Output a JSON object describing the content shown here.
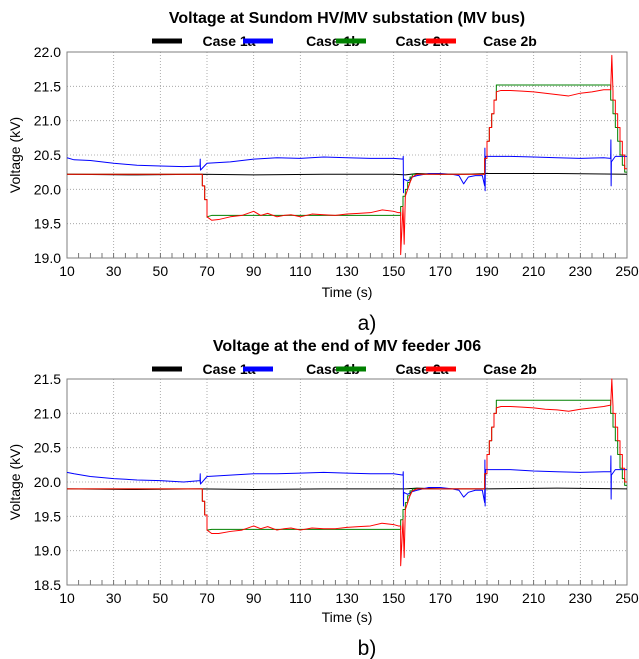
{
  "chart_data": [
    {
      "type": "line",
      "panel_label": "a)",
      "title": "Voltage at Sundom HV/MV substation (MV bus)",
      "xlabel": "Time (s)",
      "ylabel": "Voltage (kV)",
      "xlim": [
        10,
        250
      ],
      "ylim": [
        19.0,
        22.0
      ],
      "x_ticks": [
        10,
        30,
        50,
        70,
        90,
        110,
        130,
        150,
        170,
        190,
        210,
        230,
        250
      ],
      "x_tick_labels": [
        "10",
        "30",
        "50",
        "70",
        "90",
        "110",
        "130",
        "150",
        "170",
        "190",
        "210",
        "230",
        "250"
      ],
      "y_ticks": [
        19.0,
        19.5,
        20.0,
        20.5,
        21.0,
        21.5,
        22.0
      ],
      "y_tick_labels": [
        "19.0",
        "19.5",
        "20.0",
        "20.5",
        "21.0",
        "21.5",
        "22.0"
      ],
      "grid": true,
      "legend_position": "top",
      "series": [
        {
          "name": "Case 1a",
          "color": "#000000",
          "x": [
            10,
            40,
            68,
            90,
            120,
            150,
            155,
            160,
            170,
            180,
            190,
            220,
            250
          ],
          "y": [
            20.22,
            20.21,
            20.22,
            20.21,
            20.22,
            20.22,
            20.21,
            20.23,
            20.22,
            20.22,
            20.23,
            20.23,
            20.22
          ]
        },
        {
          "name": "Case 1b",
          "color": "#0000ff",
          "x": [
            10,
            13,
            20,
            30,
            40,
            50,
            60,
            67,
            67.1,
            67.2,
            70,
            80,
            90,
            100,
            110,
            120,
            130,
            140,
            150,
            154,
            154.1,
            154.2,
            154.3,
            156,
            158,
            160,
            165,
            170,
            175,
            178,
            180,
            182,
            185,
            188,
            189,
            189.1,
            189.2,
            189.3,
            189.4,
            192,
            200,
            210,
            220,
            230,
            240,
            243,
            243.1,
            243.2,
            243.3,
            245,
            250
          ],
          "y": [
            20.46,
            20.43,
            20.42,
            20.38,
            20.35,
            20.34,
            20.33,
            20.34,
            20.44,
            20.28,
            20.38,
            20.4,
            20.44,
            20.46,
            20.45,
            20.47,
            20.46,
            20.45,
            20.45,
            20.44,
            20.48,
            19.95,
            20.15,
            20.12,
            20.18,
            20.2,
            20.23,
            20.23,
            20.22,
            20.2,
            20.08,
            20.18,
            20.2,
            20.2,
            20.05,
            20.6,
            19.98,
            20.42,
            20.48,
            20.48,
            20.48,
            20.47,
            20.46,
            20.45,
            20.46,
            20.45,
            20.72,
            20.05,
            20.4,
            20.48,
            20.48
          ]
        },
        {
          "name": "Case 2a",
          "color": "#008000",
          "x": [
            10,
            67,
            68,
            68,
            69,
            69,
            70,
            70,
            72,
            80,
            90,
            100,
            110,
            120,
            130,
            140,
            150,
            152,
            153,
            153,
            154,
            154,
            155,
            155,
            156,
            156,
            157,
            157,
            158,
            158,
            160,
            165,
            170,
            180,
            188,
            189,
            189,
            190,
            190,
            191,
            191,
            192,
            192,
            193,
            193,
            194,
            194,
            196,
            200,
            210,
            220,
            230,
            243,
            243,
            244,
            244,
            245,
            245,
            246,
            246,
            247,
            247,
            248,
            248,
            249,
            249,
            250
          ],
          "y": [
            20.22,
            20.22,
            20.22,
            20.05,
            20.05,
            19.85,
            19.85,
            19.6,
            19.62,
            19.62,
            19.62,
            19.62,
            19.62,
            19.62,
            19.62,
            19.62,
            19.62,
            19.62,
            19.62,
            19.75,
            19.75,
            19.9,
            19.9,
            20.0,
            20.0,
            20.1,
            20.1,
            20.18,
            20.18,
            20.22,
            20.22,
            20.22,
            20.22,
            20.22,
            20.22,
            20.22,
            20.45,
            20.45,
            20.7,
            20.7,
            20.9,
            20.9,
            21.1,
            21.1,
            21.3,
            21.3,
            21.52,
            21.52,
            21.52,
            21.52,
            21.52,
            21.52,
            21.52,
            21.3,
            21.3,
            21.1,
            21.1,
            20.9,
            20.9,
            20.7,
            20.7,
            20.5,
            20.5,
            20.35,
            20.35,
            20.25,
            20.25
          ]
        },
        {
          "name": "Case 2b",
          "color": "#ff0000",
          "x": [
            10,
            67,
            68,
            68,
            69,
            69,
            70,
            70,
            72,
            75,
            80,
            85,
            90,
            93,
            96,
            100,
            103,
            106,
            110,
            115,
            120,
            125,
            130,
            135,
            140,
            145,
            150,
            152,
            153,
            153,
            154,
            154.5,
            155,
            155,
            156,
            156,
            157,
            157,
            158,
            158,
            160,
            165,
            170,
            180,
            188,
            189,
            189,
            190,
            190,
            191,
            191,
            192,
            192,
            193,
            193,
            194,
            194,
            196,
            200,
            205,
            210,
            215,
            220,
            225,
            230,
            235,
            240,
            243,
            243.5,
            244,
            244,
            245,
            245,
            246,
            246,
            247,
            247,
            248,
            248,
            249,
            249,
            250
          ],
          "y": [
            20.22,
            20.22,
            20.22,
            20.05,
            20.05,
            19.85,
            19.85,
            19.6,
            19.55,
            19.56,
            19.6,
            19.62,
            19.68,
            19.62,
            19.65,
            19.6,
            19.62,
            19.63,
            19.6,
            19.64,
            19.63,
            19.62,
            19.64,
            19.65,
            19.66,
            19.7,
            19.68,
            19.66,
            19.66,
            19.05,
            19.75,
            19.2,
            19.9,
            19.9,
            20.0,
            20.0,
            20.1,
            20.1,
            20.18,
            20.18,
            20.22,
            20.22,
            20.22,
            20.22,
            20.22,
            20.22,
            20.45,
            20.45,
            20.7,
            20.7,
            20.9,
            20.9,
            21.1,
            21.1,
            21.3,
            21.3,
            21.42,
            21.44,
            21.44,
            21.43,
            21.42,
            21.4,
            21.38,
            21.36,
            21.4,
            21.42,
            21.45,
            21.45,
            21.95,
            21.42,
            21.3,
            21.3,
            21.1,
            21.1,
            20.9,
            20.9,
            20.7,
            20.7,
            20.5,
            20.5,
            20.3,
            20.3
          ]
        }
      ]
    },
    {
      "type": "line",
      "panel_label": "b)",
      "title": "Voltage at the end of MV feeder J06",
      "xlabel": "Time (s)",
      "ylabel": "Voltage (kV)",
      "xlim": [
        10,
        250
      ],
      "ylim": [
        18.5,
        21.5
      ],
      "x_ticks": [
        10,
        30,
        50,
        70,
        90,
        110,
        130,
        150,
        170,
        190,
        210,
        230,
        250
      ],
      "x_tick_labels": [
        "10",
        "30",
        "50",
        "70",
        "90",
        "110",
        "130",
        "150",
        "170",
        "190",
        "210",
        "230",
        "250"
      ],
      "y_ticks": [
        18.5,
        19.0,
        19.5,
        20.0,
        20.5,
        21.0,
        21.5
      ],
      "y_tick_labels": [
        "18.5",
        "19.0",
        "19.5",
        "20.0",
        "20.5",
        "21.0",
        "21.5"
      ],
      "grid": true,
      "legend_position": "top",
      "series": [
        {
          "name": "Case 1a",
          "color": "#000000",
          "x": [
            10,
            40,
            67,
            90,
            120,
            153,
            155,
            160,
            170,
            180,
            190,
            220,
            250
          ],
          "y": [
            19.9,
            19.89,
            19.9,
            19.89,
            19.9,
            19.9,
            19.9,
            19.91,
            19.9,
            19.9,
            19.9,
            19.91,
            19.9
          ]
        },
        {
          "name": "Case 1b",
          "color": "#0000ff",
          "x": [
            10,
            13,
            20,
            30,
            40,
            50,
            60,
            67,
            67.1,
            67.2,
            70,
            80,
            90,
            100,
            110,
            120,
            130,
            140,
            150,
            154,
            154.1,
            154.2,
            154.3,
            156,
            158,
            160,
            165,
            170,
            175,
            178,
            180,
            182,
            185,
            188,
            189,
            189.1,
            189.2,
            189.3,
            189.4,
            192,
            200,
            210,
            220,
            230,
            240,
            243,
            243.1,
            243.2,
            243.3,
            245,
            250
          ],
          "y": [
            20.14,
            20.12,
            20.08,
            20.05,
            20.03,
            20.02,
            20.0,
            20.02,
            20.12,
            19.97,
            20.08,
            20.1,
            20.12,
            20.12,
            20.13,
            20.14,
            20.13,
            20.12,
            20.12,
            20.1,
            20.15,
            19.65,
            19.85,
            19.82,
            19.86,
            19.88,
            19.92,
            19.92,
            19.9,
            19.88,
            19.78,
            19.85,
            19.88,
            19.88,
            19.7,
            20.32,
            19.65,
            20.1,
            20.18,
            20.18,
            20.18,
            20.16,
            20.15,
            20.14,
            20.15,
            20.15,
            20.38,
            19.75,
            20.1,
            20.18,
            20.18
          ]
        },
        {
          "name": "Case 2a",
          "color": "#008000",
          "x": [
            10,
            67,
            68,
            68,
            69,
            69,
            70,
            70,
            72,
            80,
            90,
            100,
            110,
            120,
            130,
            140,
            150,
            152,
            153,
            153,
            154,
            154,
            155,
            155,
            156,
            156,
            157,
            157,
            158,
            158,
            160,
            165,
            170,
            180,
            188,
            189,
            189,
            190,
            190,
            191,
            191,
            192,
            192,
            193,
            193,
            194,
            194,
            196,
            200,
            210,
            220,
            230,
            243,
            243,
            244,
            244,
            245,
            245,
            246,
            246,
            247,
            247,
            248,
            248,
            249,
            249,
            250
          ],
          "y": [
            19.9,
            19.9,
            19.9,
            19.72,
            19.72,
            19.52,
            19.52,
            19.3,
            19.31,
            19.31,
            19.31,
            19.31,
            19.31,
            19.31,
            19.31,
            19.31,
            19.31,
            19.31,
            19.31,
            19.45,
            19.45,
            19.6,
            19.6,
            19.7,
            19.7,
            19.8,
            19.8,
            19.87,
            19.87,
            19.9,
            19.9,
            19.9,
            19.9,
            19.9,
            19.9,
            19.9,
            20.12,
            20.12,
            20.4,
            20.4,
            20.6,
            20.6,
            20.8,
            20.8,
            21.0,
            21.0,
            21.19,
            21.19,
            21.19,
            21.19,
            21.19,
            21.19,
            21.19,
            21.0,
            21.0,
            20.8,
            20.8,
            20.6,
            20.6,
            20.4,
            20.4,
            20.2,
            20.2,
            20.05,
            20.05,
            19.95,
            19.95
          ]
        },
        {
          "name": "Case 2b",
          "color": "#ff0000",
          "x": [
            10,
            67,
            68,
            68,
            69,
            69,
            70,
            70,
            72,
            75,
            80,
            85,
            90,
            93,
            96,
            100,
            103,
            106,
            110,
            115,
            120,
            125,
            130,
            135,
            140,
            145,
            150,
            152,
            153,
            153,
            154,
            154.5,
            155,
            155,
            156,
            156,
            157,
            157,
            158,
            158,
            160,
            165,
            170,
            180,
            188,
            189,
            189,
            190,
            190,
            191,
            191,
            192,
            192,
            193,
            193,
            194,
            194,
            196,
            200,
            205,
            210,
            215,
            220,
            225,
            230,
            235,
            240,
            243,
            243.5,
            244,
            244,
            245,
            245,
            246,
            246,
            247,
            247,
            248,
            248,
            249,
            249,
            250
          ],
          "y": [
            19.9,
            19.9,
            19.9,
            19.72,
            19.72,
            19.52,
            19.52,
            19.3,
            19.25,
            19.25,
            19.28,
            19.3,
            19.36,
            19.32,
            19.35,
            19.3,
            19.32,
            19.33,
            19.3,
            19.33,
            19.32,
            19.32,
            19.34,
            19.35,
            19.36,
            19.4,
            19.38,
            19.36,
            19.36,
            18.78,
            19.45,
            18.9,
            19.6,
            19.6,
            19.7,
            19.7,
            19.8,
            19.8,
            19.87,
            19.87,
            19.9,
            19.9,
            19.9,
            19.9,
            19.9,
            19.9,
            20.12,
            20.12,
            20.4,
            20.4,
            20.6,
            20.6,
            20.8,
            20.8,
            21.0,
            21.0,
            21.08,
            21.1,
            21.1,
            21.09,
            21.08,
            21.06,
            21.05,
            21.03,
            21.06,
            21.08,
            21.1,
            21.12,
            21.5,
            21.1,
            21.0,
            21.0,
            20.8,
            20.8,
            20.6,
            20.6,
            20.4,
            20.4,
            20.2,
            20.2,
            20.0,
            20.0
          ]
        }
      ]
    }
  ]
}
